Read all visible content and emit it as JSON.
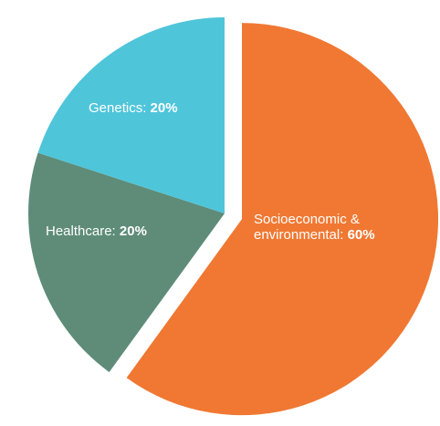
{
  "chart_data": {
    "type": "pie",
    "categories": [
      "Socioeconomic & environmental:",
      "Healthcare:",
      "Genetics:"
    ],
    "values": [
      60,
      20,
      20
    ],
    "value_labels": [
      "60%",
      "20%",
      "20%"
    ],
    "colors": [
      "#f07832",
      "#5e8c78",
      "#4fc5da"
    ],
    "exploded": [
      true,
      false,
      false
    ]
  }
}
